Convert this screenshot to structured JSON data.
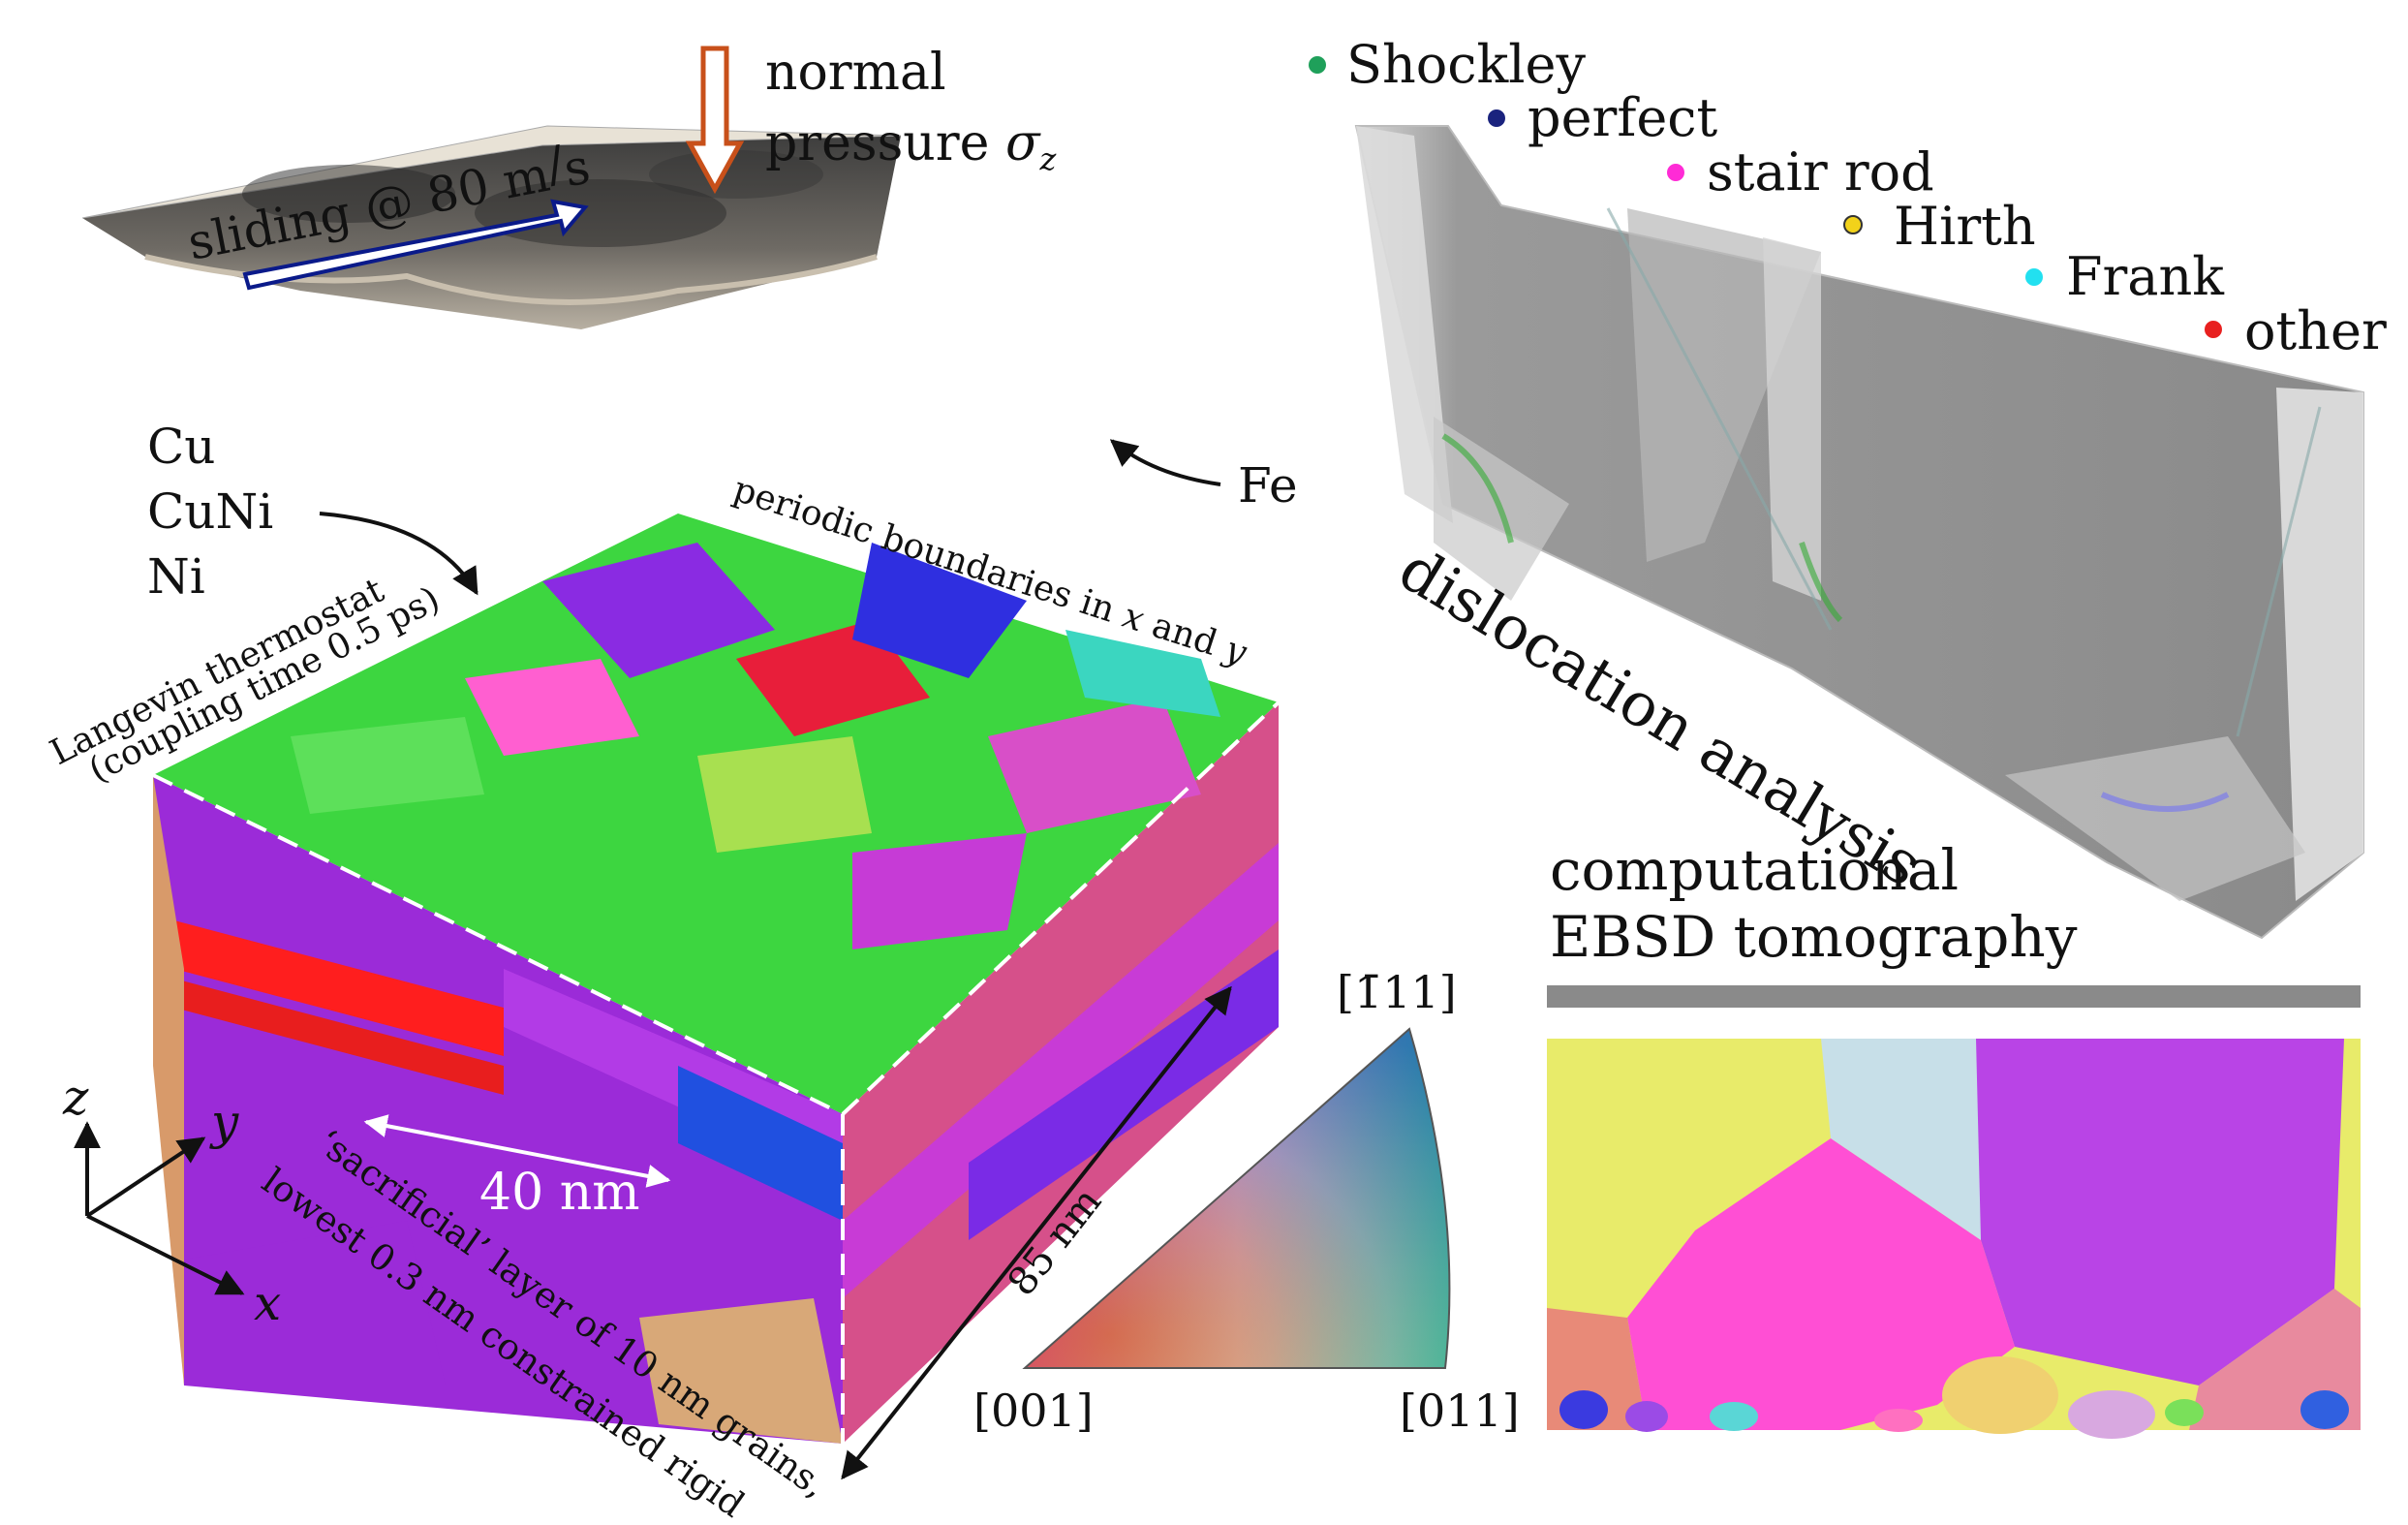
{
  "sliding": {
    "prefix": "sliding @ 80 m",
    "slash": "/",
    "unit": "s"
  },
  "pressure": {
    "line1": "normal",
    "line2": "pressure ",
    "symbol": "σ",
    "subscript": "z"
  },
  "materials": {
    "cu": "Cu",
    "cuni": "CuNi",
    "ni": "Ni",
    "fe": "Fe"
  },
  "thermostat": {
    "line1": "Langevin thermostat",
    "line2": "(coupling time 0.5 ps)"
  },
  "periodic": {
    "prefix": "periodic boundaries in ",
    "x": "x",
    "and": " and ",
    "y": "y"
  },
  "dimensions": {
    "width": "40 nm",
    "depth": "85 nm"
  },
  "sacrificial": {
    "line1": "‘sacrificial’ layer of 10 nm grains,",
    "line2": "lowest 0.3 nm constrained rigid"
  },
  "axes": {
    "x": "x",
    "y": "y",
    "z": "z"
  },
  "ipf": {
    "top": "[1̄11]",
    "left": "[001]",
    "right": "[011]"
  },
  "dislocation": {
    "title": "dislocation analysis",
    "legend": [
      {
        "label": "Shockley",
        "color": "#1fa05a"
      },
      {
        "label": "perfect",
        "color": "#1a237e"
      },
      {
        "label": "stair rod",
        "color": "#ff2bd6"
      },
      {
        "label": "Hirth",
        "color": "#f2d21a"
      },
      {
        "label": "Frank",
        "color": "#22e0f0"
      },
      {
        "label": "other",
        "color": "#e8201f"
      }
    ]
  },
  "ebsd": {
    "line1": "computational",
    "line2": "EBSD tomography"
  },
  "colors": {
    "arrow_blue": "#0a1a8a",
    "arrow_orange": "#c8501a"
  }
}
